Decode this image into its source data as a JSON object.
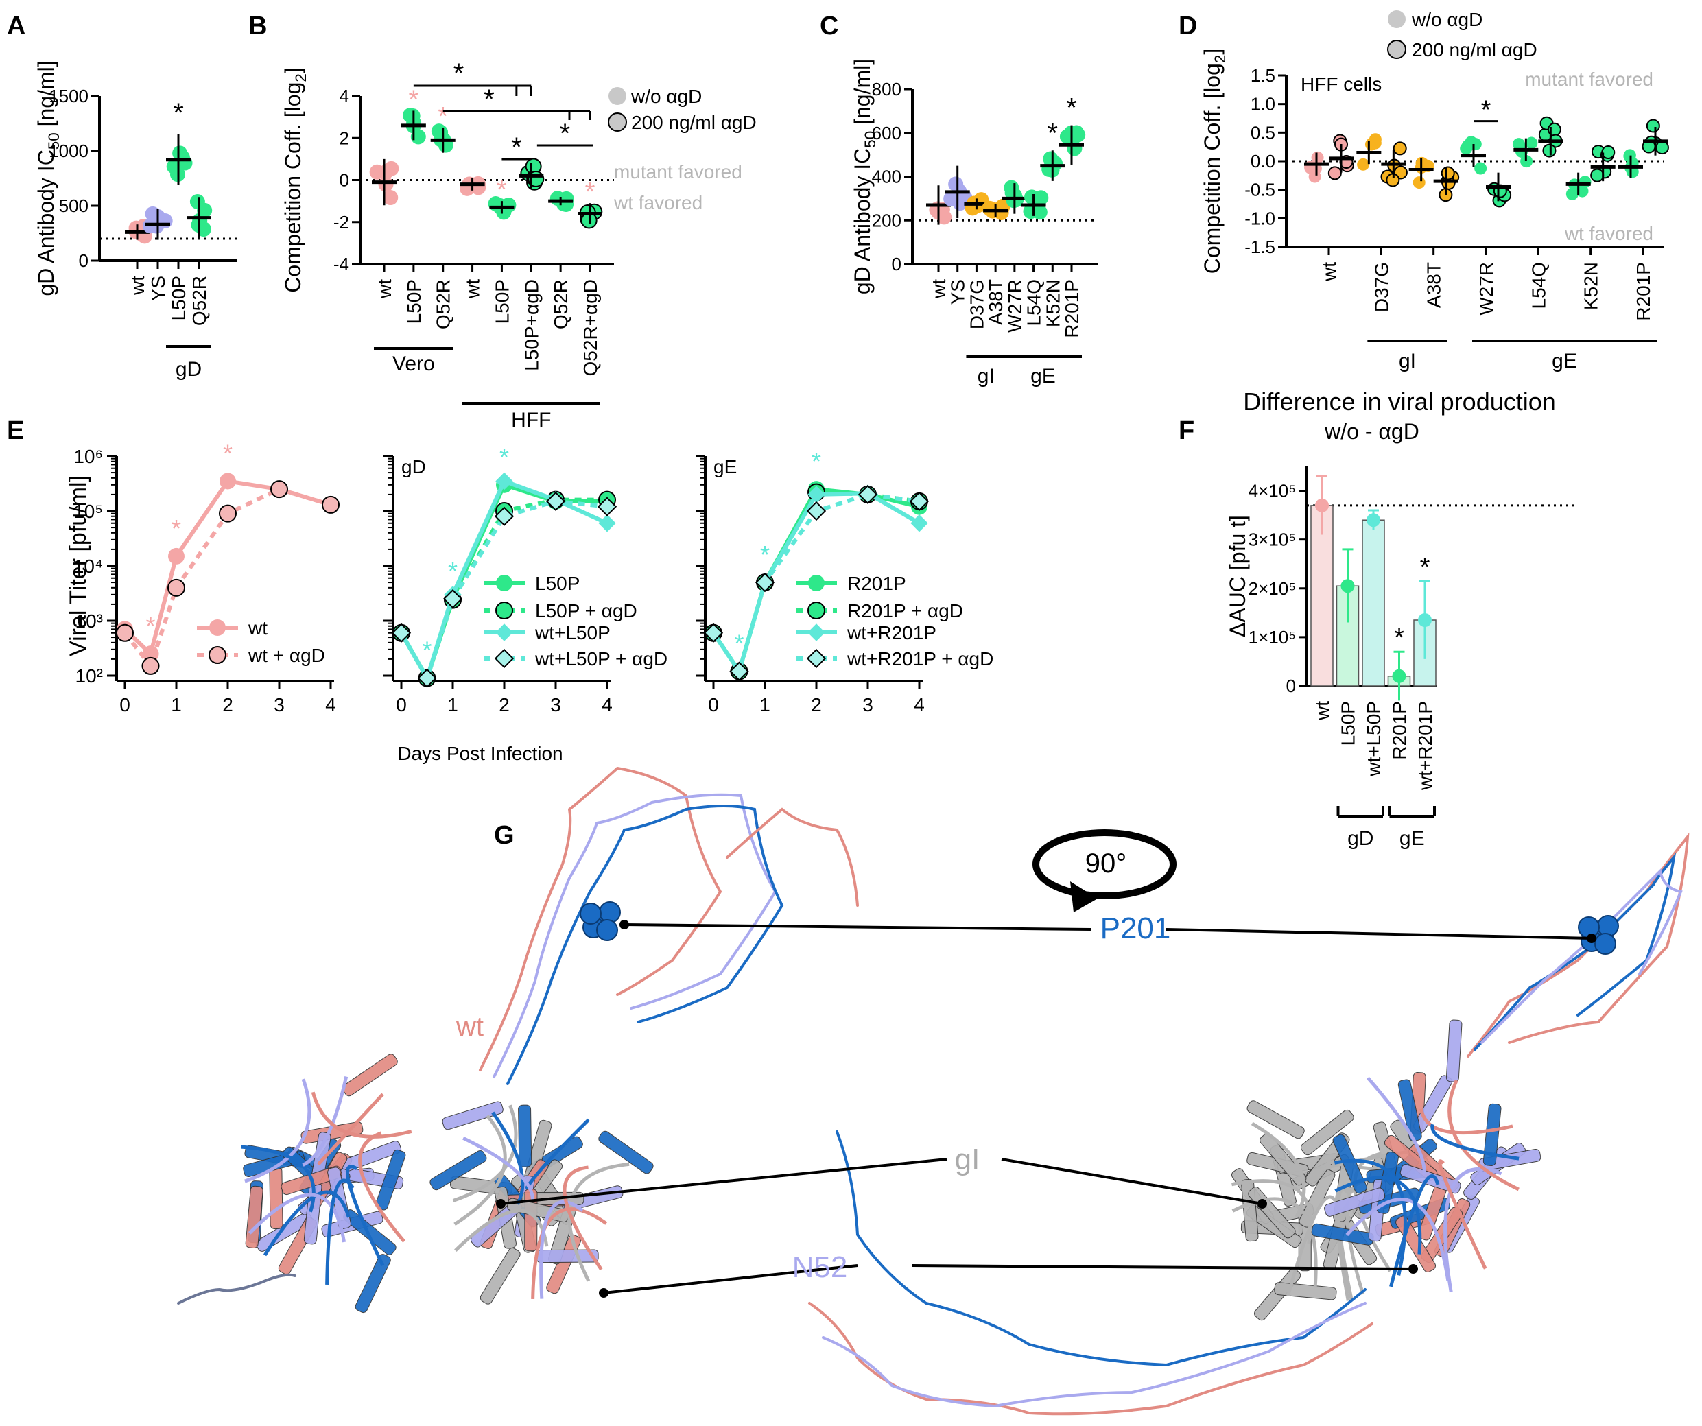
{
  "colors": {
    "wt": "#f4a6a6",
    "ys": "#a9a9ee",
    "gd": "#2ee88a",
    "gi": "#f7b21e",
    "wtmix": "#5ee8d8",
    "grey": "#c8c8c8",
    "dark_blue": "#1a6bc4",
    "light_blue": "#a9a9ee",
    "salmon": "#e28b83",
    "struct_grey": "#b3b3b3"
  },
  "panels": {
    "A": "A",
    "B": "B",
    "C": "C",
    "D": "D",
    "E": "E",
    "F": "F",
    "G": "G"
  },
  "legend_top": {
    "without": "w/o αgD",
    "with": "200 ng/ml αgD"
  },
  "chart_data": [
    {
      "id": "A",
      "type": "scatter",
      "ylabel": "gD Antibody IC50 [ng/ml]",
      "ylim": [
        0,
        1500
      ],
      "yticks": [
        0,
        500,
        1000,
        1500
      ],
      "categories": [
        "wt",
        "YS",
        "L50P",
        "Q52R"
      ],
      "means": [
        260,
        330,
        920,
        390
      ],
      "errors": [
        70,
        140,
        230,
        190
      ],
      "dotted_line": 200,
      "group_labels": [
        {
          "label": "gD",
          "from": 2,
          "to": 3
        }
      ],
      "stars": [
        "",
        "",
        "*",
        ""
      ],
      "point_colors": [
        "wt",
        "ys",
        "gd",
        "gd"
      ]
    },
    {
      "id": "B",
      "type": "scatter",
      "ylabel": "Competition Coff. [log2]",
      "ylim": [
        -4,
        4
      ],
      "yticks": [
        -4,
        -2,
        0,
        2,
        4
      ],
      "categories": [
        "wt",
        "L50P",
        "Q52R",
        "wt",
        "L50P",
        "L50P+αgD",
        "Q52R",
        "Q52R+αgD"
      ],
      "means": [
        -0.1,
        2.6,
        1.9,
        -0.2,
        -1.3,
        0.2,
        -1.0,
        -1.6
      ],
      "errors": [
        1.1,
        0.7,
        0.6,
        0.3,
        0.3,
        0.6,
        0.2,
        0.5
      ],
      "stars": [
        "",
        "*",
        "*",
        "",
        "*",
        "",
        "",
        "*"
      ],
      "annotations": [
        "mutant favored",
        "wt favored"
      ],
      "group_labels": [
        {
          "label": "Vero",
          "from": 0,
          "to": 2
        },
        {
          "label": "HFF",
          "from": 3,
          "to": 7
        }
      ],
      "brackets": [
        "*",
        "*",
        "*",
        "*"
      ]
    },
    {
      "id": "C",
      "type": "scatter",
      "ylabel": "gD Antibody IC50 [ng/ml]",
      "ylim": [
        0,
        800
      ],
      "yticks": [
        0,
        200,
        400,
        600,
        800
      ],
      "categories": [
        "wt",
        "YS",
        "D37G",
        "A38T",
        "W27R",
        "L54Q",
        "K52N",
        "R201P"
      ],
      "means": [
        270,
        330,
        275,
        245,
        300,
        270,
        450,
        545
      ],
      "errors": [
        90,
        120,
        25,
        30,
        70,
        50,
        70,
        90
      ],
      "dotted_line": 200,
      "stars": [
        "",
        "",
        "",
        "",
        "",
        "",
        "*",
        "*"
      ],
      "group_labels": [
        {
          "label": "gI",
          "from": 2,
          "to": 3
        },
        {
          "label": "gE",
          "from": 4,
          "to": 7
        }
      ]
    },
    {
      "id": "D",
      "type": "scatter",
      "title": "HFF cells",
      "ylabel": "Competition Coff. [log2]",
      "ylim": [
        -1.5,
        1.5
      ],
      "yticks": [
        -1.5,
        -1.0,
        -0.5,
        0.0,
        0.5,
        1.0,
        1.5
      ],
      "categories": [
        "wt",
        "D37G",
        "A38T",
        "W27R",
        "L54Q",
        "K52N",
        "R201P"
      ],
      "means_without": [
        -0.05,
        0.15,
        -0.15,
        0.1,
        0.2,
        -0.4,
        -0.1
      ],
      "means_with": [
        0.05,
        -0.05,
        -0.35,
        -0.45,
        0.35,
        -0.1,
        0.35
      ],
      "stars": [
        "",
        "",
        "",
        "*",
        "",
        "",
        ""
      ],
      "annotations": [
        "mutant favored",
        "wt favored"
      ],
      "group_labels": [
        {
          "label": "gI",
          "from": 1,
          "to": 2
        },
        {
          "label": "gE",
          "from": 3,
          "to": 6
        }
      ]
    },
    {
      "id": "E",
      "type": "line",
      "ylabel": "Viral Titer [pfu/ml]",
      "xlabel": "Days Post Infection",
      "x": [
        0,
        0.5,
        1,
        2,
        3,
        4
      ],
      "ylim": [
        100,
        1000000
      ],
      "yticks": [
        "10²",
        "10³",
        "10⁴",
        "10⁵",
        "10⁶"
      ],
      "xticks": [
        0,
        1,
        2,
        3,
        4
      ],
      "subplots": [
        {
          "label": "",
          "series": [
            {
              "name": "wt",
              "values": [
                700,
                250,
                15000,
                350000,
                250000,
                130000
              ]
            },
            {
              "name": "wt + αgD",
              "values": [
                600,
                150,
                4000,
                90000,
                250000,
                130000
              ]
            }
          ]
        },
        {
          "label": "gD",
          "series": [
            {
              "name": "L50P",
              "values": [
                600,
                90,
                2500,
                300000,
                150000,
                150000
              ]
            },
            {
              "name": "L50P + αgD",
              "values": [
                600,
                90,
                2400,
                100000,
                160000,
                160000
              ]
            },
            {
              "name": "wt+L50P",
              "values": [
                600,
                90,
                3000,
                350000,
                160000,
                60000
              ]
            },
            {
              "name": "wt+L50P + αgD",
              "values": [
                600,
                90,
                2500,
                80000,
                150000,
                120000
              ]
            }
          ]
        },
        {
          "label": "gE",
          "series": [
            {
              "name": "R201P",
              "values": [
                600,
                120,
                5000,
                250000,
                200000,
                120000
              ]
            },
            {
              "name": "R201P + αgD",
              "values": [
                600,
                120,
                5000,
                220000,
                200000,
                150000
              ]
            },
            {
              "name": "wt+R201P",
              "values": [
                600,
                120,
                5000,
                200000,
                210000,
                60000
              ]
            },
            {
              "name": "wt+R201P + αgD",
              "values": [
                600,
                120,
                5000,
                100000,
                200000,
                150000
              ]
            }
          ]
        }
      ]
    },
    {
      "id": "F",
      "type": "bar",
      "title": "Difference in viral production",
      "subtitle": "w/o - αgD",
      "ylabel": "ΔAUC [pfu t]",
      "ylim": [
        0,
        450000
      ],
      "yticks": [
        "0",
        "1×10⁵",
        "2×10⁵",
        "3×10⁵",
        "4×10⁵"
      ],
      "categories": [
        "wt",
        "L50P",
        "wt+L50P",
        "R201P",
        "wt+R201P"
      ],
      "values": [
        370000,
        205000,
        340000,
        20000,
        135000
      ],
      "errors": [
        60000,
        75000,
        20000,
        50000,
        80000
      ],
      "stars": [
        "",
        "",
        "",
        "*",
        "*"
      ],
      "dotted_line": 370000,
      "group_labels": [
        {
          "label": "gD",
          "from": 1,
          "to": 2
        },
        {
          "label": "gE",
          "from": 3,
          "to": 4
        }
      ]
    }
  ],
  "structure": {
    "rotation": "90°",
    "labels": {
      "wt": "wt",
      "p201": "P201",
      "gi": "gI",
      "n52": "N52"
    }
  }
}
